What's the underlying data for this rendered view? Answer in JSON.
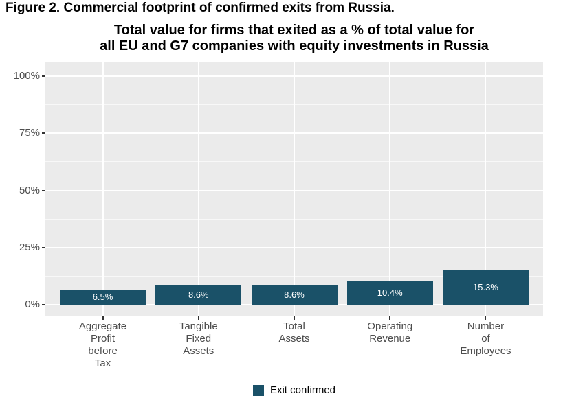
{
  "figure": {
    "caption": "Figure 2. Commercial footprint of confirmed exits from Russia."
  },
  "chart_data": {
    "type": "bar",
    "title": "Total value for firms that exited as a % of total value for\nall EU and G7 companies with equity investments in Russia",
    "categories": [
      "Aggregate\nProfit\nbefore\nTax",
      "Tangible\nFixed\nAssets",
      "Total\nAssets",
      "Operating\nRevenue",
      "Number\nof\nEmployees"
    ],
    "category_names": [
      "Aggregate Profit before Tax",
      "Tangible Fixed Assets",
      "Total Assets",
      "Operating Revenue",
      "Number of Employees"
    ],
    "series": [
      {
        "name": "Exit confirmed",
        "values": [
          6.5,
          8.6,
          8.6,
          10.4,
          15.3
        ]
      }
    ],
    "value_labels": [
      "6.5%",
      "8.6%",
      "8.6%",
      "10.4%",
      "15.3%"
    ],
    "xlabel": "",
    "ylabel": "",
    "ylim": [
      0,
      100
    ],
    "yticks": [
      0,
      25,
      50,
      75,
      100
    ],
    "ytick_labels": [
      "0%",
      "25%",
      "50%",
      "75%",
      "100%"
    ],
    "yticks_minor": [
      12.5,
      37.5,
      62.5,
      87.5
    ],
    "grid": "horizontal major+minor, vertical major at category centers",
    "legend_position": "bottom-center",
    "colors": {
      "bar": "#1a5168",
      "panel_background": "#ebebeb",
      "gridline": "#ffffff",
      "axis_text": "#4d4d4d",
      "tick_mark": "#333333",
      "bar_label_text": "#ffffff",
      "title_text": "#000000"
    }
  },
  "legend": {
    "items": [
      {
        "label": "Exit confirmed",
        "color": "#1a5168"
      }
    ]
  }
}
